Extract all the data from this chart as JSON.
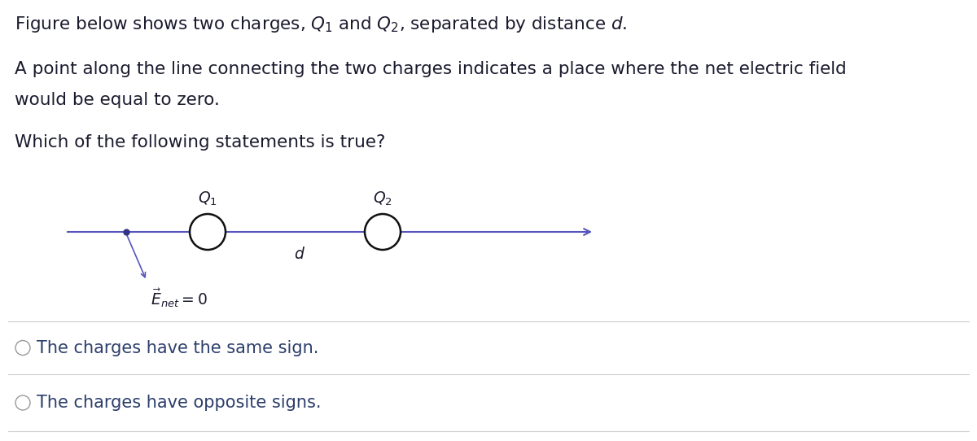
{
  "background_color": "#ffffff",
  "line1": "Figure below shows two charges, $Q_1$ and $Q_2$, separated by distance $d$.",
  "line2": "A point along the line connecting the two charges indicates a place where the net electric field",
  "line3": "would be equal to zero.",
  "line4": "Which of the following statements is true?",
  "diagram_line_color": "#5555bb",
  "text_color": "#1a1a2e",
  "circle_color": "#111111",
  "dot_color": "#333388",
  "option_text_color": "#2c3e6b",
  "separator_color": "#cccccc",
  "q1_label": "$Q_1$",
  "q2_label": "$Q_2$",
  "d_label": "$d$",
  "enet_label": "$\\vec{E}_{net} = 0$",
  "option1": "The charges have the same sign.",
  "option2": "The charges have opposite signs.",
  "fontsize_main": 15.5,
  "fontsize_diagram": 13.5,
  "fontsize_option": 15.0
}
